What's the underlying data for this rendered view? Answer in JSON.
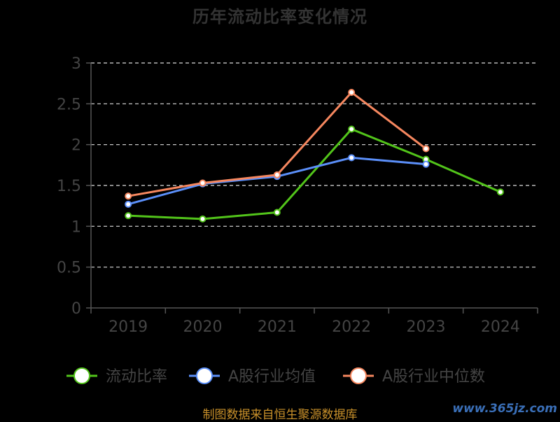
{
  "title": "历年流动比率变化情况",
  "source": "制图数据来自恒生聚源数据库",
  "watermark": "www.365jz.com",
  "colors": {
    "background": "#000000",
    "axis": "#555555",
    "grid": "#dddddd"
  },
  "chart_data": {
    "type": "line",
    "title": "历年流动比率变化情况",
    "categories": [
      "2019",
      "2020",
      "2021",
      "2022",
      "2023",
      "2024"
    ],
    "ylim": [
      0,
      3
    ],
    "yticks": [
      "0",
      "0.5",
      "1",
      "1.5",
      "2",
      "2.5",
      "3"
    ],
    "grid": true,
    "legend_position": "bottom",
    "series": [
      {
        "name": "流动比率",
        "color": "#52c41a",
        "values": [
          1.13,
          1.09,
          1.17,
          2.19,
          1.82,
          1.42
        ]
      },
      {
        "name": "A股行业均值",
        "color": "#5b8ff9",
        "values": [
          1.27,
          1.52,
          1.61,
          1.84,
          1.76,
          null
        ]
      },
      {
        "name": "A股行业中位数",
        "color": "#f6875f",
        "values": [
          1.37,
          1.53,
          1.63,
          2.64,
          1.95,
          null
        ]
      }
    ]
  }
}
